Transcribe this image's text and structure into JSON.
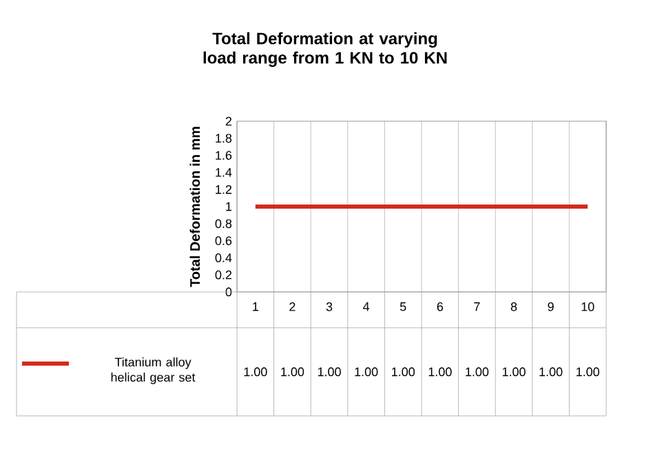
{
  "chart_data": {
    "type": "line",
    "title": "Total Deformation at varying load range from 1 KN to 10 KN",
    "ylabel": "Total Deformation in mm",
    "categories": [
      "1",
      "2",
      "3",
      "4",
      "5",
      "6",
      "7",
      "8",
      "9",
      "10"
    ],
    "series": [
      {
        "name": "Titanium alloy helical gear set",
        "color": "#d42a1e",
        "values": [
          1,
          1,
          1,
          1,
          1,
          1,
          1,
          1,
          1,
          1
        ],
        "value_labels": [
          "1.00",
          "1.00",
          "1.00",
          "1.00",
          "1.00",
          "1.00",
          "1.00",
          "1.00",
          "1.00",
          "1.00"
        ]
      }
    ],
    "ylim": [
      0,
      2
    ],
    "yticks": [
      0,
      0.2,
      0.4,
      0.6,
      0.8,
      1,
      1.2,
      1.4,
      1.6,
      1.8,
      2
    ],
    "grid": "x",
    "legend": "bottom",
    "line_style": "solid"
  }
}
